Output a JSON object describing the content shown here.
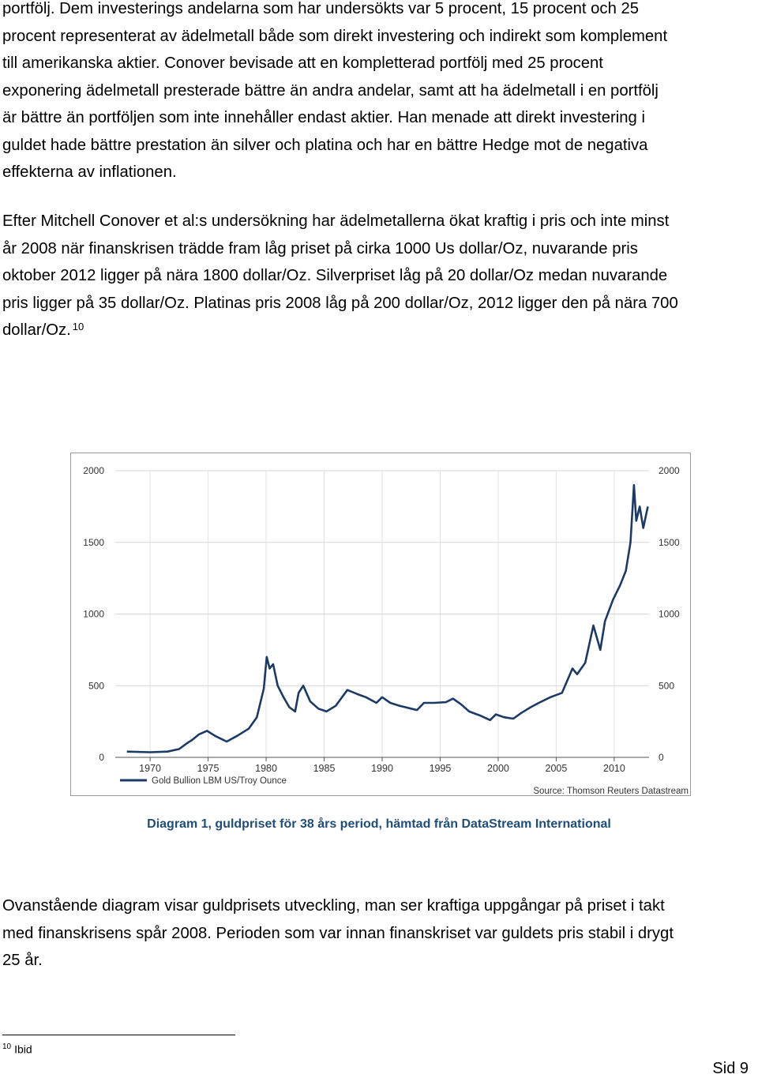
{
  "paragraphs": {
    "p1": [
      "portfölj. Dem investerings andelarna som har undersökts var 5 procent, 15 procent och 25",
      "procent representerat av ädelmetall både som direkt investering och indirekt som komplement",
      "till amerikanska aktier. Conover bevisade att en kompletterad portfölj med 25 procent",
      "exponering ädelmetall presterade bättre än andra andelar, samt att ha ädelmetall i en portfölj",
      "är bättre än portföljen som inte innehåller endast aktier. Han menade att direkt investering i",
      "guldet hade bättre prestation än silver och platina och har en bättre Hedge mot de negativa",
      "effekterna av inflationen."
    ],
    "p2": [
      "Efter Mitchell Conover et al:s undersökning har ädelmetallerna ökat kraftig i pris och inte minst",
      "år 2008 när finanskrisen trädde fram låg priset på cirka 1000 Us dollar/Oz, nuvarande pris",
      "oktober 2012 ligger på nära 1800 dollar/Oz. Silverpriset låg på 20 dollar/Oz medan nuvarande",
      "pris ligger på 35 dollar/Oz. Platinas pris 2008 låg på 200 dollar/Oz, 2012 ligger den på nära 700",
      "dollar/Oz."
    ],
    "p2_footnote_ref": "10",
    "p3": [
      "Ovanstående diagram visar guldprisets utveckling, man ser kraftiga uppgångar på priset i takt",
      "med finanskrisens spår 2008. Perioden som var innan finanskriset var guldets pris stabil i drygt",
      "25 år."
    ]
  },
  "chart_data": {
    "type": "line",
    "legend": "top-left below axis",
    "series": [
      {
        "name": "Gold Bullion LBM US/Troy Ounce",
        "color": "#1b3a66",
        "x": [
          1968.0,
          1970.0,
          1971.5,
          1972.5,
          1973.2,
          1973.6,
          1974.2,
          1974.9,
          1975.6,
          1976.6,
          1977.5,
          1978.5,
          1979.2,
          1979.8,
          1980.05,
          1980.3,
          1980.6,
          1981.0,
          1981.5,
          1982.0,
          1982.5,
          1982.8,
          1983.2,
          1983.8,
          1984.5,
          1985.2,
          1986.0,
          1987.0,
          1987.9,
          1988.6,
          1989.5,
          1990.0,
          1990.7,
          1991.5,
          1992.5,
          1993.0,
          1993.6,
          1994.5,
          1995.5,
          1996.1,
          1996.8,
          1997.5,
          1998.5,
          1999.3,
          1999.8,
          2000.5,
          2001.3,
          2002.0,
          2002.8,
          2003.5,
          2004.5,
          2005.5,
          2006.4,
          2006.8,
          2007.5,
          2008.2,
          2008.8,
          2009.2,
          2009.9,
          2010.5,
          2011.0,
          2011.4,
          2011.7,
          2011.9,
          2012.2,
          2012.5,
          2012.9
        ],
        "y": [
          40,
          36,
          40,
          58,
          100,
          120,
          160,
          185,
          150,
          110,
          150,
          200,
          280,
          480,
          700,
          620,
          650,
          500,
          420,
          350,
          320,
          450,
          500,
          390,
          340,
          320,
          360,
          470,
          440,
          420,
          380,
          420,
          380,
          360,
          340,
          330,
          380,
          380,
          385,
          410,
          370,
          320,
          290,
          260,
          300,
          280,
          270,
          310,
          350,
          380,
          420,
          450,
          620,
          580,
          660,
          920,
          750,
          950,
          1100,
          1200,
          1300,
          1500,
          1900,
          1650,
          1750,
          1600,
          1750
        ],
        "line_width_hint": "thick"
      }
    ],
    "xlim": [
      1967,
      2013
    ],
    "ylim": [
      0,
      2000
    ],
    "x_ticks": [
      "1970",
      "1975",
      "1980",
      "1985",
      "1990",
      "1995",
      "2000",
      "2005",
      "2010"
    ],
    "y_ticks_left": [
      "2000",
      "1500",
      "1000",
      "500",
      "0"
    ],
    "y_ticks_right": [
      "2000",
      "1500",
      "1000",
      "500",
      "0"
    ],
    "source": "Source: Thomson Reuters Datastream",
    "grid": true
  },
  "caption": "Diagram 1, guldpriset för 38 års period, hämtad från DataStream International",
  "footnote": {
    "number": "10",
    "text": "Ibid"
  },
  "page_number": "Sid 9"
}
